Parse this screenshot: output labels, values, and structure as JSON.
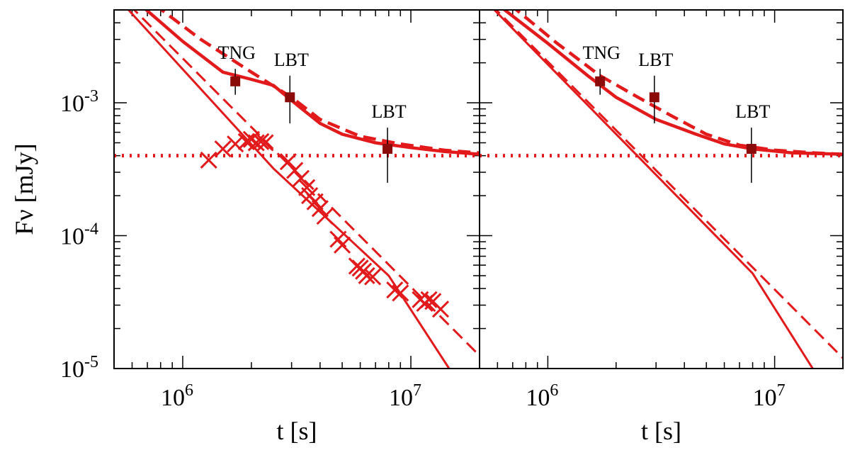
{
  "chart_data": [
    {
      "type": "line",
      "panel": "left",
      "xlabel": "t [s]",
      "ylabel": "Fν [mJy]",
      "xscale": "log",
      "yscale": "log",
      "xlim": [
        500000,
        20000000
      ],
      "ylim": [
        1e-05,
        0.005
      ],
      "x_tick_labels": [
        "10^6",
        "10^7"
      ],
      "y_tick_labels": [
        "10^-3",
        "10^-4",
        "10^-5"
      ],
      "series": [
        {
          "style": "solid",
          "points": [
            [
              550000,
              0.0055
            ],
            [
              2500000,
              0.00032
            ],
            [
              8000000,
              5e-05
            ],
            [
              15000000,
              9.5e-06
            ]
          ]
        },
        {
          "style": "dashed",
          "points": [
            [
              580000,
              0.0055
            ],
            [
              20000000,
              1.25e-05
            ]
          ]
        },
        {
          "style": "solid-thick",
          "points": [
            [
              650000,
              0.0055
            ],
            [
              1000000,
              0.0029
            ],
            [
              1500000,
              0.0017
            ],
            [
              2000000,
              0.0015
            ],
            [
              2500000,
              0.00135
            ],
            [
              3200000,
              0.00095
            ],
            [
              4000000,
              0.0007
            ],
            [
              5000000,
              0.00058
            ],
            [
              7000000,
              0.0005
            ],
            [
              10000000,
              0.00046
            ],
            [
              14000000,
              0.00043
            ],
            [
              20000000,
              0.00041
            ]
          ]
        },
        {
          "style": "dashed-thick",
          "points": [
            [
              750000,
              0.0055
            ],
            [
              1200000,
              0.003
            ],
            [
              2000000,
              0.0017
            ],
            [
              3000000,
              0.0011
            ],
            [
              4000000,
              0.00075
            ],
            [
              6000000,
              0.00056
            ],
            [
              9000000,
              0.00049
            ],
            [
              14000000,
              0.00044
            ],
            [
              20000000,
              0.00042
            ]
          ]
        },
        {
          "style": "dotted",
          "points": [
            [
              500000,
              0.0004
            ],
            [
              20000000,
              0.0004
            ]
          ]
        }
      ],
      "markers_x": [
        [
          1300000,
          0.00037
        ],
        [
          1500000,
          0.00045
        ],
        [
          1700000,
          0.00049
        ],
        [
          1900000,
          0.00051
        ],
        [
          2000000,
          0.00053
        ],
        [
          2100000,
          0.0005
        ],
        [
          2200000,
          0.00051
        ],
        [
          2300000,
          0.0005
        ],
        [
          2900000,
          0.00036
        ],
        [
          3100000,
          0.00031
        ],
        [
          3300000,
          0.00027
        ],
        [
          3500000,
          0.00023
        ],
        [
          3600000,
          0.0002
        ],
        [
          3800000,
          0.00018
        ],
        [
          4000000,
          0.00016
        ],
        [
          4200000,
          0.00014
        ],
        [
          4800000,
          9.4e-05
        ],
        [
          5000000,
          8.5e-05
        ],
        [
          5800000,
          5.9e-05
        ],
        [
          6000000,
          5.7e-05
        ],
        [
          6200000,
          5.4e-05
        ],
        [
          6400000,
          5e-05
        ],
        [
          6800000,
          4.9e-05
        ],
        [
          8500000,
          3.9e-05
        ],
        [
          9000000,
          3.7e-05
        ],
        [
          11000000,
          3.3e-05
        ],
        [
          11500000,
          3.1e-05
        ],
        [
          12000000,
          3.3e-05
        ],
        [
          12500000,
          3.2e-05
        ],
        [
          13500000,
          2.8e-05
        ]
      ],
      "markers_sq": [
        {
          "label": "TNG",
          "x": 1700000,
          "y": 0.00145,
          "yerr_lo": 0.00115,
          "yerr_hi": 0.0018
        },
        {
          "label": "LBT",
          "x": 2950000,
          "y": 0.0011,
          "yerr_lo": 0.0007,
          "yerr_hi": 0.0016
        },
        {
          "label": "LBT",
          "x": 7900000,
          "y": 0.00045,
          "yerr_lo": 0.00025,
          "yerr_hi": 0.00065
        }
      ]
    },
    {
      "type": "line",
      "panel": "right",
      "xlabel": "t [s]",
      "xscale": "log",
      "yscale": "log",
      "xlim": [
        500000,
        20000000
      ],
      "ylim": [
        1e-05,
        0.005
      ],
      "x_tick_labels": [
        "10^6",
        "10^7"
      ],
      "series": [
        {
          "style": "solid",
          "points": [
            [
              550000,
              0.0055
            ],
            [
              8000000,
              5.2e-05
            ],
            [
              15000000,
              9.5e-06
            ]
          ]
        },
        {
          "style": "dashed",
          "points": [
            [
              560000,
              0.0055
            ],
            [
              20000000,
              1.2e-05
            ]
          ]
        },
        {
          "style": "solid-thick",
          "points": [
            [
              600000,
              0.0055
            ],
            [
              1000000,
              0.0028
            ],
            [
              1500000,
              0.0016
            ],
            [
              2000000,
              0.0011
            ],
            [
              3000000,
              0.00075
            ],
            [
              4500000,
              0.00058
            ],
            [
              6000000,
              0.00049
            ],
            [
              8000000,
              0.00045
            ],
            [
              12000000,
              0.00042
            ],
            [
              20000000,
              0.00041
            ]
          ]
        },
        {
          "style": "dashed-thick",
          "points": [
            [
              680000,
              0.0055
            ],
            [
              1100000,
              0.0028
            ],
            [
              1700000,
              0.0016
            ],
            [
              2500000,
              0.0011
            ],
            [
              3500000,
              0.0008
            ],
            [
              5000000,
              0.00058
            ],
            [
              7000000,
              0.00048
            ],
            [
              10000000,
              0.00044
            ],
            [
              15000000,
              0.00042
            ],
            [
              20000000,
              0.00041
            ]
          ]
        },
        {
          "style": "dotted",
          "points": [
            [
              500000,
              0.0004
            ],
            [
              20000000,
              0.0004
            ]
          ]
        }
      ],
      "markers_sq": [
        {
          "label": "TNG",
          "x": 1700000,
          "y": 0.00145,
          "yerr_lo": 0.00115,
          "yerr_hi": 0.0018
        },
        {
          "label": "LBT",
          "x": 2950000,
          "y": 0.0011,
          "yerr_lo": 0.0007,
          "yerr_hi": 0.0016
        },
        {
          "label": "LBT",
          "x": 7900000,
          "y": 0.00045,
          "yerr_lo": 0.00025,
          "yerr_hi": 0.00065
        }
      ]
    }
  ]
}
